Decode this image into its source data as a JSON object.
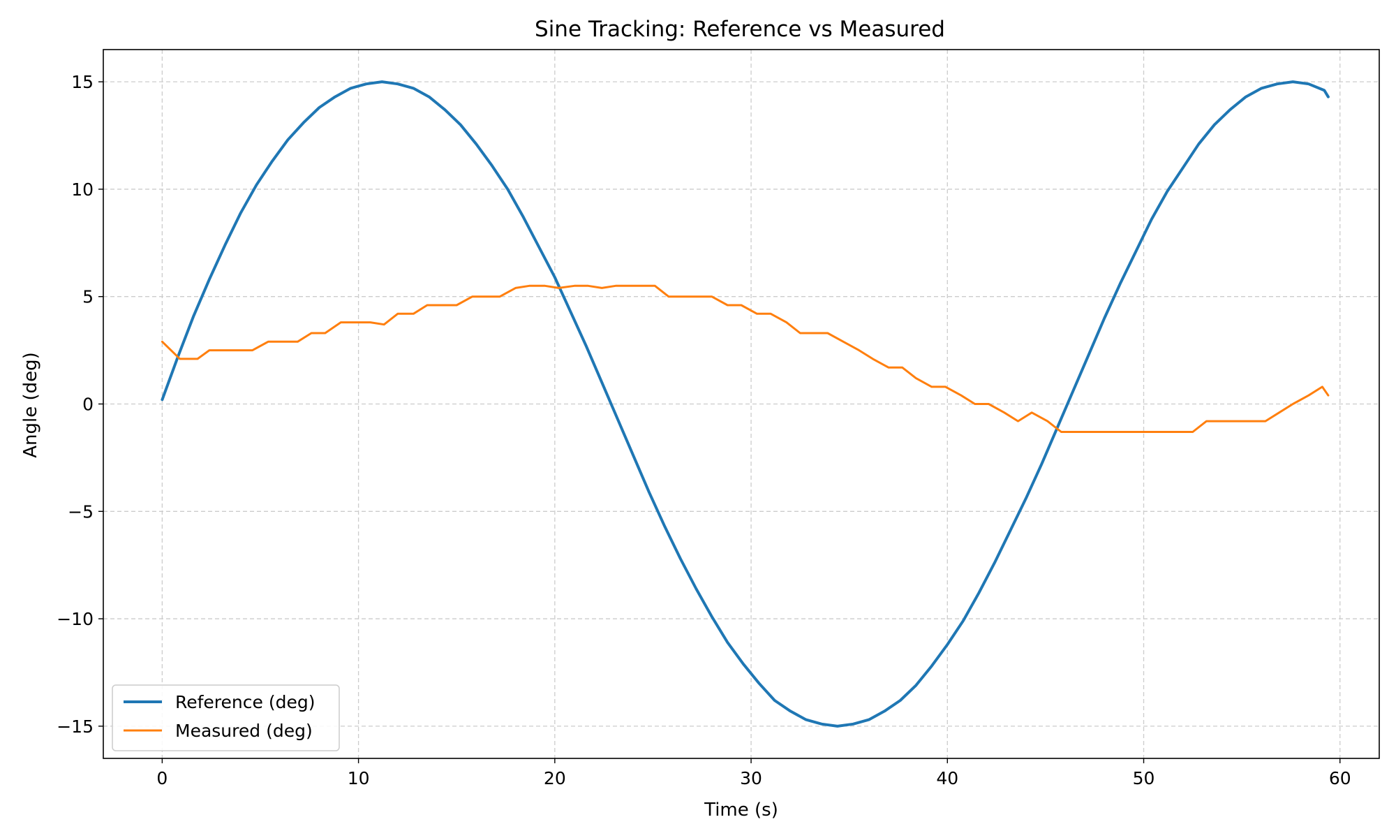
{
  "chart_data": {
    "type": "line",
    "title": "Sine Tracking: Reference vs Measured",
    "xlabel": "Time (s)",
    "ylabel": "Angle (deg)",
    "xlim": [
      -3,
      62
    ],
    "ylim": [
      -16.5,
      16.5
    ],
    "xticks": [
      0,
      10,
      20,
      30,
      40,
      50,
      60
    ],
    "xtick_labels": [
      "0",
      "10",
      "20",
      "30",
      "40",
      "50",
      "60"
    ],
    "yticks": [
      -15,
      -10,
      -5,
      0,
      5,
      10,
      15
    ],
    "ytick_labels": [
      "−15",
      "−10",
      "−5",
      "0",
      "5",
      "10",
      "15"
    ],
    "grid": true,
    "legend_position": "lower-left",
    "series": [
      {
        "name": "Reference (deg)",
        "color": "#1f77b4",
        "x": [
          0,
          0.8,
          1.6,
          2.4,
          3.2,
          4.0,
          4.8,
          5.6,
          6.4,
          7.2,
          8.0,
          8.8,
          9.6,
          10.4,
          11.2,
          12.0,
          12.8,
          13.6,
          14.4,
          15.2,
          16.0,
          16.8,
          17.6,
          18.4,
          19.2,
          20.0,
          20.8,
          21.6,
          22.4,
          23.2,
          24.0,
          24.8,
          25.6,
          26.4,
          27.2,
          28.0,
          28.8,
          29.6,
          30.4,
          31.2,
          32.0,
          32.8,
          33.6,
          34.4,
          35.2,
          36.0,
          36.8,
          37.6,
          38.4,
          39.2,
          40.0,
          40.8,
          41.6,
          42.4,
          43.2,
          44.0,
          44.8,
          45.6,
          46.4,
          47.2,
          48.0,
          48.8,
          49.6,
          50.4,
          51.2,
          52.0,
          52.8,
          53.6,
          54.4,
          55.2,
          56.0,
          56.8,
          57.6,
          58.4,
          59.2,
          59.4
        ],
        "values": [
          0.2,
          2.2,
          4.1,
          5.8,
          7.4,
          8.9,
          10.2,
          11.3,
          12.3,
          13.1,
          13.8,
          14.3,
          14.7,
          14.9,
          15.0,
          14.9,
          14.7,
          14.3,
          13.7,
          13.0,
          12.1,
          11.1,
          10.0,
          8.7,
          7.3,
          5.9,
          4.3,
          2.7,
          1.0,
          -0.7,
          -2.4,
          -4.1,
          -5.7,
          -7.2,
          -8.6,
          -9.9,
          -11.1,
          -12.1,
          -13.0,
          -13.8,
          -14.3,
          -14.7,
          -14.9,
          -15.0,
          -14.9,
          -14.7,
          -14.3,
          -13.8,
          -13.1,
          -12.2,
          -11.2,
          -10.1,
          -8.8,
          -7.4,
          -5.9,
          -4.4,
          -2.8,
          -1.1,
          0.6,
          2.3,
          4.0,
          5.6,
          7.1,
          8.6,
          9.9,
          11.0,
          12.1,
          13.0,
          13.7,
          14.3,
          14.7,
          14.9,
          15.0,
          14.9,
          14.6,
          14.3
        ]
      },
      {
        "name": "Measured (deg)",
        "color": "#ff7f0e",
        "x": [
          0,
          0.9,
          1.8,
          2.4,
          3.3,
          4.6,
          5.4,
          6.1,
          6.9,
          7.6,
          8.3,
          9.1,
          9.9,
          10.6,
          11.3,
          12.0,
          12.8,
          13.5,
          14.3,
          15.0,
          15.8,
          16.5,
          17.2,
          18.0,
          18.7,
          19.5,
          20.2,
          21.0,
          21.7,
          22.4,
          23.1,
          23.9,
          24.7,
          25.1,
          25.8,
          26.5,
          27.3,
          28.0,
          28.8,
          29.5,
          30.3,
          31.0,
          31.8,
          32.5,
          33.2,
          33.9,
          34.7,
          35.5,
          36.2,
          37.0,
          37.7,
          38.4,
          39.2,
          39.9,
          40.7,
          41.4,
          42.1,
          42.9,
          43.6,
          44.3,
          45.1,
          45.8,
          46.6,
          47.3,
          48.0,
          48.8,
          49.5,
          50.3,
          51.0,
          51.7,
          52.5,
          53.2,
          54.0,
          54.7,
          55.4,
          56.2,
          56.9,
          57.6,
          58.4,
          59.1,
          59.4
        ],
        "values": [
          2.9,
          2.1,
          2.1,
          2.5,
          2.5,
          2.5,
          2.9,
          2.9,
          2.9,
          3.3,
          3.3,
          3.8,
          3.8,
          3.8,
          3.7,
          4.2,
          4.2,
          4.6,
          4.6,
          4.6,
          5.0,
          5.0,
          5.0,
          5.4,
          5.5,
          5.5,
          5.4,
          5.5,
          5.5,
          5.4,
          5.5,
          5.5,
          5.5,
          5.5,
          5.0,
          5.0,
          5.0,
          5.0,
          4.6,
          4.6,
          4.2,
          4.2,
          3.8,
          3.3,
          3.3,
          3.3,
          2.9,
          2.5,
          2.1,
          1.7,
          1.7,
          1.2,
          0.8,
          0.8,
          0.4,
          0.0,
          0.0,
          -0.4,
          -0.8,
          -0.4,
          -0.8,
          -1.3,
          -1.3,
          -1.3,
          -1.3,
          -1.3,
          -1.3,
          -1.3,
          -1.3,
          -1.3,
          -1.3,
          -0.8,
          -0.8,
          -0.8,
          -0.8,
          -0.8,
          -0.4,
          0.0,
          0.4,
          0.8,
          0.4
        ]
      }
    ]
  }
}
